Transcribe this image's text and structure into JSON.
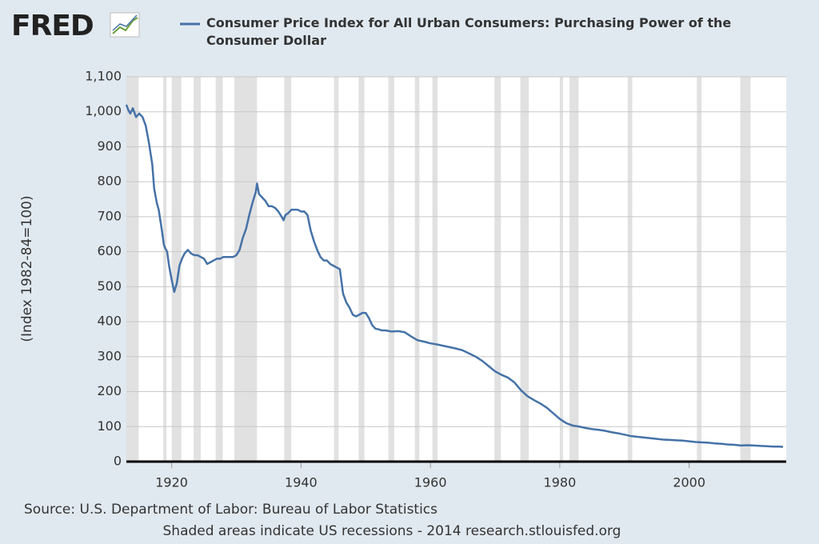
{
  "chart_data": {
    "type": "line",
    "logo": "FRED",
    "y_label": "(Index 1982-84=100)",
    "source": "Source: U.S. Department of Labor: Bureau of Labor Statistics",
    "note": "Shaded areas indicate US recessions - 2014 research.stlouisfed.org",
    "xlim": [
      1913,
      2015
    ],
    "xticks": [
      1920,
      1940,
      1960,
      1980,
      2000
    ],
    "ylim": [
      0,
      1100
    ],
    "yticks": [
      0,
      100,
      200,
      300,
      400,
      500,
      600,
      700,
      800,
      900,
      {
        "value": 1000,
        "label": "1,000"
      },
      {
        "value": 1100,
        "label": "1,100"
      }
    ],
    "grid": true,
    "recession_color": "#e1e1e1",
    "recessions": [
      [
        1913.0,
        1914.9
      ],
      [
        1918.7,
        1919.2
      ],
      [
        1920.0,
        1921.5
      ],
      [
        1923.4,
        1924.5
      ],
      [
        1926.8,
        1927.9
      ],
      [
        1929.7,
        1933.2
      ],
      [
        1937.4,
        1938.5
      ],
      [
        1945.1,
        1945.8
      ],
      [
        1948.9,
        1949.8
      ],
      [
        1953.5,
        1954.4
      ],
      [
        1957.6,
        1958.3
      ],
      [
        1960.3,
        1961.1
      ],
      [
        1969.9,
        1970.9
      ],
      [
        1973.9,
        1975.2
      ],
      [
        1980.0,
        1980.5
      ],
      [
        1981.5,
        1982.9
      ],
      [
        1990.5,
        1991.2
      ],
      [
        2001.2,
        2001.9
      ],
      [
        2007.9,
        2009.5
      ]
    ],
    "x": [
      1913.0,
      1913.3,
      1913.6,
      1914.0,
      1914.5,
      1915.0,
      1915.5,
      1916.0,
      1916.5,
      1917.0,
      1917.3,
      1917.7,
      1918.0,
      1918.5,
      1918.8,
      1919.0,
      1919.3,
      1919.6,
      1920.0,
      1920.4,
      1920.8,
      1921.2,
      1921.6,
      1922.0,
      1922.5,
      1923.0,
      1923.5,
      1924.0,
      1924.5,
      1925.0,
      1925.5,
      1926.0,
      1926.5,
      1927.0,
      1927.5,
      1928.0,
      1928.5,
      1929.0,
      1929.5,
      1930.0,
      1930.5,
      1931.0,
      1931.5,
      1932.0,
      1932.5,
      1933.0,
      1933.2,
      1933.5,
      1934.0,
      1934.5,
      1935.0,
      1935.5,
      1936.0,
      1936.5,
      1937.0,
      1937.3,
      1937.6,
      1938.0,
      1938.5,
      1939.0,
      1939.5,
      1940.0,
      1940.5,
      1941.0,
      1941.5,
      1942.0,
      1942.5,
      1943.0,
      1943.5,
      1944.0,
      1944.5,
      1945.0,
      1945.5,
      1946.0,
      1946.5,
      1947.0,
      1947.5,
      1948.0,
      1948.5,
      1949.0,
      1949.5,
      1950.0,
      1950.5,
      1951.0,
      1951.5,
      1952.0,
      1952.5,
      1953.0,
      1954.0,
      1955.0,
      1956.0,
      1957.0,
      1958.0,
      1959.0,
      1960.0,
      1961.0,
      1962.0,
      1963.0,
      1964.0,
      1965.0,
      1966.0,
      1967.0,
      1968.0,
      1969.0,
      1970.0,
      1971.0,
      1972.0,
      1973.0,
      1974.0,
      1975.0,
      1976.0,
      1977.0,
      1978.0,
      1979.0,
      1980.0,
      1981.0,
      1982.0,
      1983.0,
      1984.0,
      1985.0,
      1986.0,
      1987.0,
      1988.0,
      1989.0,
      1990.0,
      1991.0,
      1992.0,
      1993.0,
      1994.0,
      1995.0,
      1996.0,
      1997.0,
      1998.0,
      1999.0,
      2000.0,
      2001.0,
      2002.0,
      2003.0,
      2004.0,
      2005.0,
      2006.0,
      2007.0,
      2008.0,
      2009.0,
      2010.0,
      2011.0,
      2012.0,
      2013.0,
      2014.0,
      2014.5
    ],
    "series": [
      {
        "name": "Consumer Price Index for All Urban Consumers: Purchasing Power of the Consumer Dollar",
        "color": "#4572a7",
        "values": [
          1020,
          1005,
          995,
          1010,
          985,
          995,
          985,
          960,
          910,
          850,
          780,
          740,
          720,
          660,
          620,
          610,
          600,
          560,
          520,
          485,
          510,
          560,
          580,
          595,
          605,
          595,
          590,
          590,
          585,
          580,
          565,
          570,
          575,
          580,
          580,
          585,
          585,
          585,
          585,
          590,
          605,
          640,
          665,
          705,
          740,
          770,
          795,
          765,
          755,
          745,
          730,
          730,
          725,
          715,
          700,
          690,
          705,
          710,
          720,
          720,
          720,
          715,
          715,
          705,
          660,
          630,
          605,
          585,
          575,
          575,
          565,
          560,
          555,
          550,
          480,
          455,
          440,
          420,
          415,
          420,
          425,
          425,
          410,
          390,
          380,
          378,
          375,
          375,
          372,
          373,
          370,
          358,
          347,
          343,
          338,
          335,
          331,
          327,
          323,
          318,
          309,
          300,
          288,
          273,
          258,
          248,
          240,
          226,
          204,
          187,
          176,
          166,
          154,
          138,
          122,
          110,
          103,
          100,
          96,
          93,
          91,
          88,
          84,
          81,
          77,
          73,
          71,
          69,
          67,
          65,
          63,
          62,
          61,
          60,
          58,
          56,
          55,
          54,
          52,
          51,
          49,
          48,
          46,
          47,
          46,
          45,
          44,
          43,
          43,
          42
        ]
      }
    ]
  }
}
